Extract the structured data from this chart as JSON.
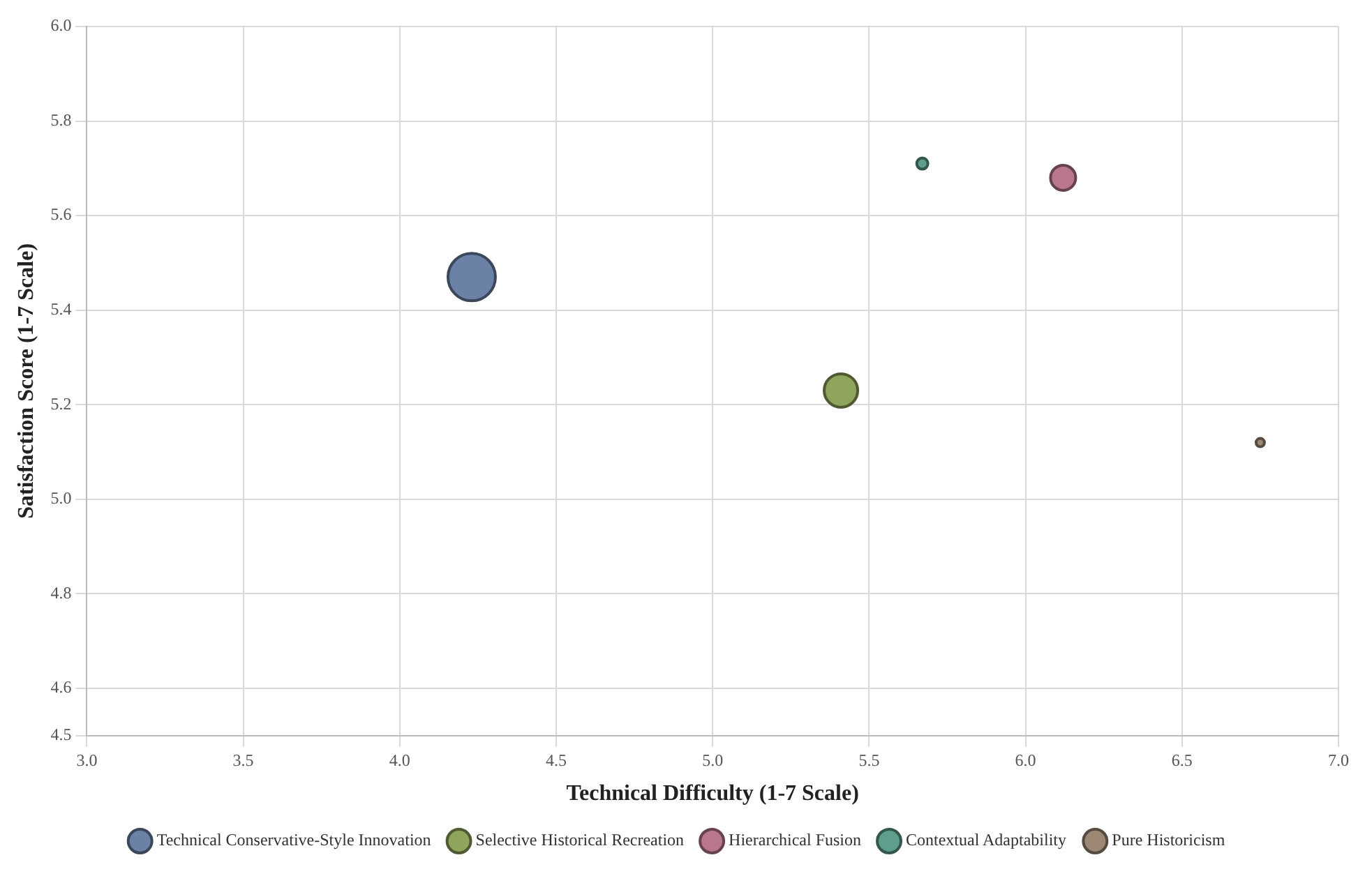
{
  "chart_data": {
    "type": "bubble",
    "xlabel": "Technical Difficulty (1-7 Scale)",
    "ylabel": "Satisfaction Score (1-7 Scale)",
    "xlim": [
      3.0,
      7.0
    ],
    "xticks": [
      {
        "value": 3,
        "label": "3.0"
      },
      {
        "value": 3.5,
        "label": "3.5"
      },
      {
        "value": 4,
        "label": "4.0"
      },
      {
        "value": 4.5,
        "label": "4.5"
      },
      {
        "value": 5,
        "label": "5.0"
      },
      {
        "value": 5.5,
        "label": "5.5"
      },
      {
        "value": 6,
        "label": "6.0"
      },
      {
        "value": 6.5,
        "label": "6.5"
      },
      {
        "value": 7,
        "label": "7.0"
      }
    ],
    "ylim": [
      4.5,
      6.0
    ],
    "yticks": [
      4.5,
      4.6,
      4.8,
      {
        "value": 5,
        "label": "5.0"
      },
      5.2,
      5.4,
      5.6,
      5.8,
      {
        "value": 6,
        "label": "6.0"
      }
    ],
    "grid": true,
    "legend": "bottom",
    "series": [
      {
        "name": "Technical Conservative-Style Innovation",
        "color": "#6b82a6",
        "x": [
          4.23
        ],
        "values": [
          5.47
        ],
        "sizes": [
          1
        ]
      },
      {
        "name": "Selective Historical Recreation",
        "color": "#8fa45c",
        "x": [
          5.41
        ],
        "values": [
          5.23
        ],
        "sizes": [
          0.5
        ]
      },
      {
        "name": "Hierarchical Fusion",
        "color": "#b9778f",
        "x": [
          6.12
        ],
        "values": [
          5.68
        ],
        "sizes": [
          0.28
        ]
      },
      {
        "name": "Contextual Adaptability",
        "color": "#5f9e8c",
        "x": [
          5.67
        ],
        "values": [
          5.71
        ],
        "sizes": [
          0.055
        ]
      },
      {
        "name": "Pure Historicism",
        "color": "#9c8874",
        "x": [
          6.75
        ],
        "values": [
          5.12
        ],
        "sizes": [
          0.031
        ]
      }
    ]
  }
}
